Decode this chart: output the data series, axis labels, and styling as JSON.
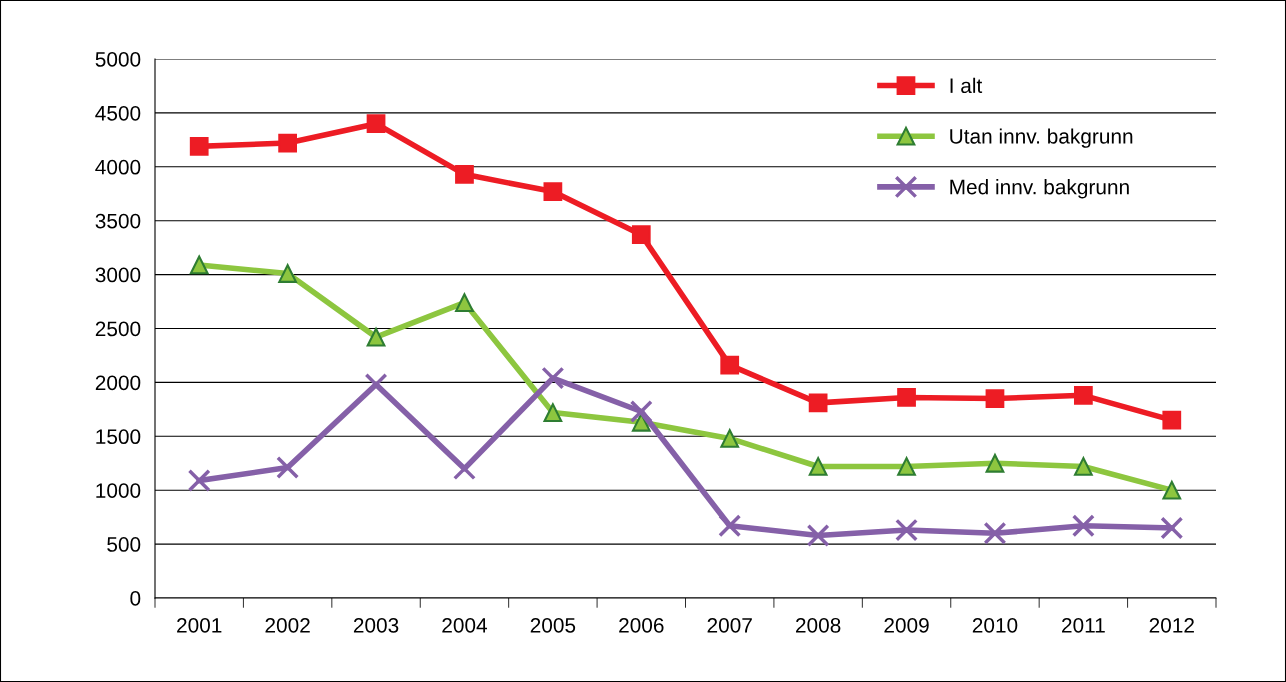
{
  "chart_data": {
    "type": "line",
    "categories": [
      "2001",
      "2002",
      "2003",
      "2004",
      "2005",
      "2006",
      "2007",
      "2008",
      "2009",
      "2010",
      "2011",
      "2012"
    ],
    "series": [
      {
        "name": "I alt",
        "color": "#ed1c24",
        "marker": "square",
        "values": [
          4190,
          4220,
          4400,
          3930,
          3770,
          3370,
          2160,
          1810,
          1860,
          1850,
          1880,
          1650
        ]
      },
      {
        "name": "Utan innv. bakgrunn",
        "color": "#8dc63f",
        "marker": "triangle",
        "values": [
          3090,
          3010,
          2420,
          2740,
          1720,
          1630,
          1480,
          1220,
          1220,
          1250,
          1220,
          1000
        ]
      },
      {
        "name": "Med innv. bakgrunn",
        "color": "#8560a8",
        "marker": "cross",
        "values": [
          1090,
          1210,
          1980,
          1200,
          2040,
          1730,
          670,
          580,
          630,
          600,
          670,
          650
        ]
      }
    ],
    "ylim": [
      0,
      5000
    ],
    "yticks": [
      0,
      500,
      1000,
      1500,
      2000,
      2500,
      3000,
      3500,
      4000,
      4500,
      5000
    ],
    "grid": "y",
    "legend": "top right",
    "line_style": "solid"
  }
}
